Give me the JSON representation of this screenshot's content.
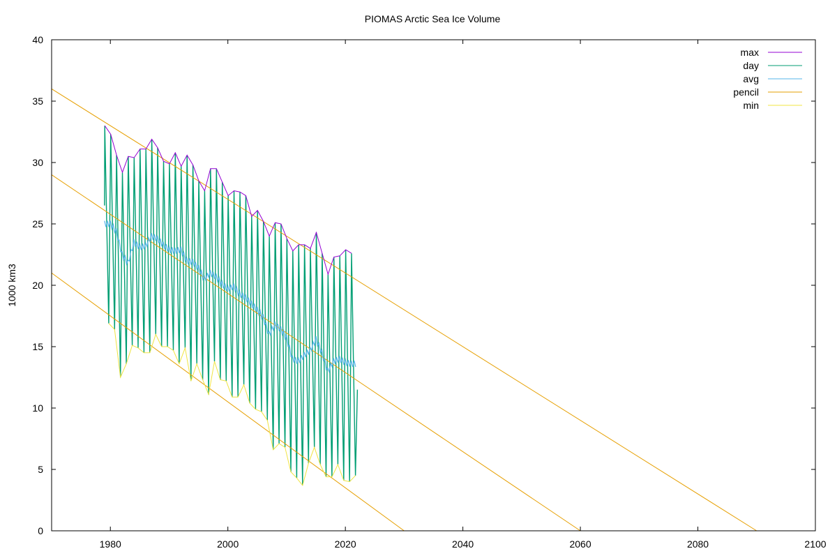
{
  "chart_data": {
    "type": "line",
    "title": "PIOMAS Arctic Sea Ice Volume",
    "xlabel": "",
    "ylabel": "1000 km3",
    "xlim": [
      1970,
      2100
    ],
    "ylim": [
      0,
      40
    ],
    "xticks": [
      1980,
      2000,
      2020,
      2040,
      2060,
      2080,
      2100
    ],
    "yticks": [
      0,
      5,
      10,
      15,
      20,
      25,
      30,
      35,
      40
    ],
    "grid": false,
    "legend_position": "top-right",
    "legend": [
      "max",
      "day",
      "avg",
      "pencil",
      "min"
    ],
    "colors": {
      "max": "#9400d3",
      "day": "#009e73",
      "avg": "#56b4e9",
      "pencil": "#e69f00",
      "min": "#f0e442"
    },
    "years": [
      1979,
      1980,
      1981,
      1982,
      1983,
      1984,
      1985,
      1986,
      1987,
      1988,
      1989,
      1990,
      1991,
      1992,
      1993,
      1994,
      1995,
      1996,
      1997,
      1998,
      1999,
      2000,
      2001,
      2002,
      2003,
      2004,
      2005,
      2006,
      2007,
      2008,
      2009,
      2010,
      2011,
      2012,
      2013,
      2014,
      2015,
      2016,
      2017,
      2018,
      2019,
      2020,
      2021
    ],
    "max_values": [
      33.0,
      32.3,
      30.6,
      29.2,
      30.5,
      30.4,
      31.1,
      31.1,
      31.9,
      31.2,
      30.1,
      29.9,
      30.8,
      29.7,
      30.6,
      29.8,
      28.5,
      27.7,
      29.5,
      29.5,
      28.4,
      27.3,
      27.7,
      27.6,
      27.3,
      25.6,
      26.1,
      25.2,
      24.0,
      25.1,
      25.0,
      23.8,
      22.8,
      23.3,
      23.3,
      23.0,
      24.3,
      22.6,
      20.9,
      22.3,
      22.4,
      22.9,
      22.6
    ],
    "min_values": [
      16.9,
      16.4,
      12.5,
      13.6,
      15.1,
      14.9,
      14.5,
      14.5,
      16.0,
      15.0,
      15.0,
      14.7,
      13.6,
      14.9,
      12.2,
      13.6,
      12.3,
      11.1,
      13.8,
      12.3,
      12.2,
      10.9,
      10.9,
      11.9,
      10.4,
      9.9,
      9.7,
      9.0,
      6.6,
      7.1,
      6.8,
      4.8,
      4.3,
      3.7,
      5.5,
      6.8,
      5.4,
      4.4,
      4.4,
      5.4,
      4.1,
      4.0,
      4.5
    ],
    "end_value": 11.5,
    "avg_values": [
      25.0,
      25.0,
      24.4,
      22.5,
      21.8,
      23.5,
      23.1,
      23.2,
      24.0,
      23.8,
      23.3,
      22.9,
      22.8,
      22.9,
      22.0,
      21.9,
      21.4,
      20.5,
      21.0,
      20.7,
      20.1,
      19.7,
      19.9,
      19.3,
      19.0,
      18.5,
      18.0,
      17.4,
      16.0,
      16.8,
      16.4,
      15.7,
      14.0,
      13.8,
      14.3,
      14.7,
      15.6,
      14.5,
      13.0,
      13.8,
      14.0,
      13.7,
      13.6
    ],
    "pencil_lines": [
      {
        "x": [
          1970,
          2090
        ],
        "y": [
          36,
          0
        ]
      },
      {
        "x": [
          1970,
          2060
        ],
        "y": [
          29,
          0
        ]
      },
      {
        "x": [
          1970,
          2030
        ],
        "y": [
          21,
          0
        ]
      }
    ]
  }
}
